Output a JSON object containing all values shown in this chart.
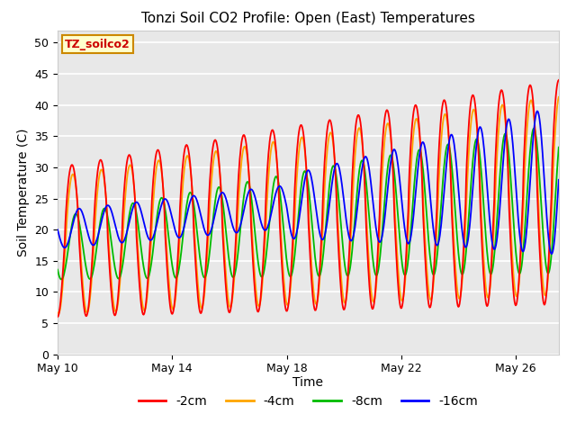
{
  "title": "Tonzi Soil CO2 Profile: Open (East) Temperatures",
  "ylabel": "Soil Temperature (C)",
  "xlabel": "Time",
  "annotation": "TZ_soilco2",
  "ylim": [
    0,
    52
  ],
  "yticks": [
    0,
    5,
    10,
    15,
    20,
    25,
    30,
    35,
    40,
    45,
    50
  ],
  "xtick_labels": [
    "May 10",
    "May 14",
    "May 18",
    "May 22",
    "May 26"
  ],
  "xtick_positions": [
    0,
    4,
    8,
    12,
    16
  ],
  "colors": {
    "-2cm": "#ff0000",
    "-4cm": "#ffa500",
    "-8cm": "#00bb00",
    "-16cm": "#0000ff"
  },
  "legend_labels": [
    "-2cm",
    "-4cm",
    "-8cm",
    "-16cm"
  ],
  "fig_bg_color": "#ffffff",
  "plot_bg_color": "#e8e8e8",
  "title_fontsize": 11,
  "axis_label_fontsize": 10,
  "tick_fontsize": 9,
  "legend_fontsize": 10,
  "n_days": 17.5,
  "period": 1.0
}
